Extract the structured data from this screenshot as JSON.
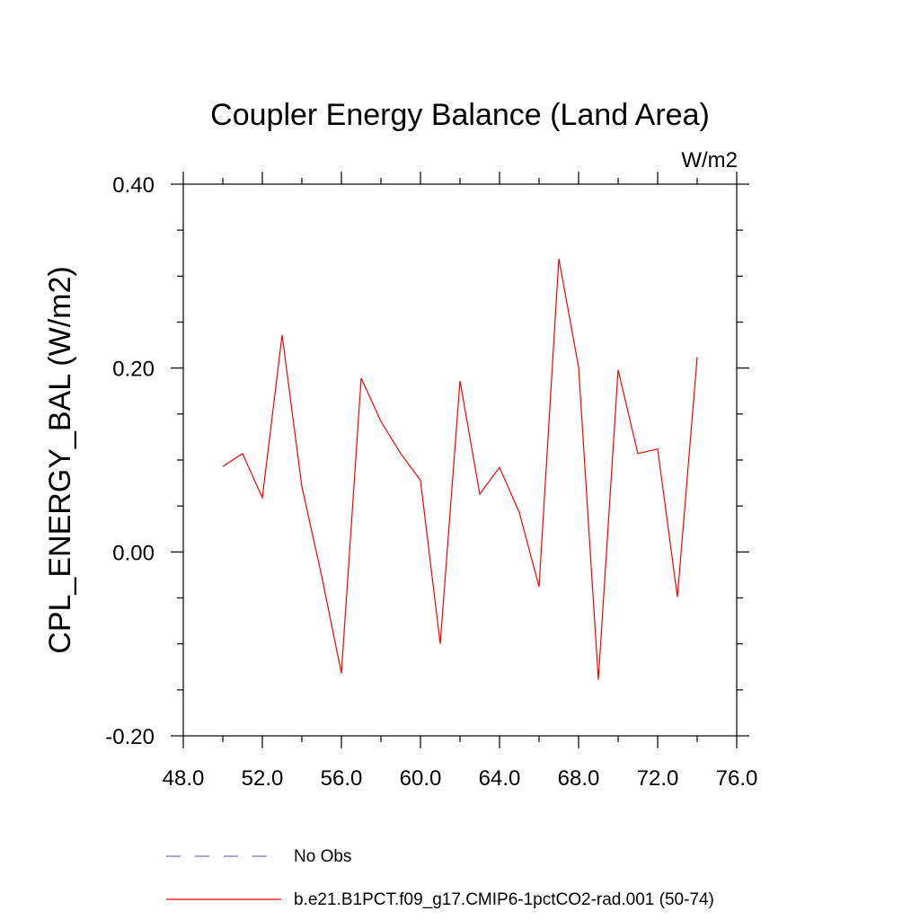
{
  "chart_data": {
    "type": "line",
    "title": "Coupler Energy Balance (Land Area)",
    "units": "W/m2",
    "xlabel": "",
    "ylabel": "CPL_ENERGY_BAL  (W/m2)",
    "xlim": [
      48,
      76
    ],
    "ylim": [
      -0.2,
      0.4
    ],
    "x_ticks": [
      48,
      52,
      56,
      60,
      64,
      68,
      72,
      76
    ],
    "x_tick_labels": [
      "48.0",
      "52.0",
      "56.0",
      "60.0",
      "64.0",
      "68.0",
      "72.0",
      "76.0"
    ],
    "y_ticks": [
      -0.2,
      0.0,
      0.2,
      0.4
    ],
    "y_tick_labels": [
      "-0.20",
      "0.00",
      "0.20",
      "0.40"
    ],
    "x_minor_step": 2,
    "y_minor_step": 0.05,
    "grid": false,
    "legend_position": "bottom",
    "series": [
      {
        "name": "No Obs",
        "color": "#7b72b5",
        "dash": "dashed",
        "x": [],
        "values": []
      },
      {
        "name": "b.e21.B1PCT.f09_g17.CMIP6-1pctCO2-rad.001 (50-74)",
        "color": "#ff0000",
        "dash": "solid",
        "x": [
          50,
          51,
          52,
          53,
          54,
          55,
          56,
          57,
          58,
          59,
          60,
          61,
          62,
          63,
          64,
          65,
          66,
          67,
          68,
          69,
          70,
          71,
          72,
          73,
          74
        ],
        "values": [
          0.093,
          0.107,
          0.059,
          0.236,
          0.071,
          -0.026,
          -0.132,
          0.189,
          0.142,
          0.107,
          0.078,
          -0.1,
          0.186,
          0.063,
          0.092,
          0.043,
          -0.038,
          0.319,
          0.201,
          -0.139,
          0.198,
          0.107,
          0.112,
          -0.049,
          0.212
        ]
      }
    ]
  }
}
